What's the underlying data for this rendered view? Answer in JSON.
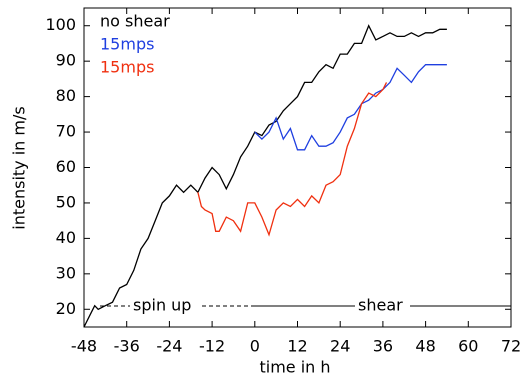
{
  "chart_data": {
    "type": "line",
    "xlabel": "time in h",
    "ylabel": "intensity in m/s",
    "xlim": [
      -48,
      72
    ],
    "xticks": [
      -48,
      -36,
      -24,
      -12,
      0,
      12,
      24,
      36,
      48,
      60,
      72
    ],
    "ylim": [
      15,
      105
    ],
    "yticks": [
      20,
      30,
      40,
      50,
      60,
      70,
      80,
      90,
      100
    ],
    "legend": "upper left",
    "annotations": [
      "spin up",
      "shear"
    ],
    "series": [
      {
        "name": "no shear",
        "color": "#000000",
        "x": [
          -48,
          -46,
          -45,
          -44,
          -42,
          -40,
          -38,
          -36,
          -34,
          -32,
          -30,
          -28,
          -26,
          -24,
          -22,
          -20,
          -18,
          -16,
          -14,
          -12,
          -10,
          -8,
          -6,
          -4,
          -2,
          0,
          2,
          4,
          6,
          8,
          10,
          12,
          14,
          16,
          18,
          20,
          22,
          24,
          26,
          28,
          30,
          32,
          34,
          36,
          38,
          40,
          42,
          44,
          46,
          48,
          50,
          52,
          54
        ],
        "values": [
          15,
          19,
          21,
          20,
          21,
          22,
          26,
          27,
          31,
          37,
          40,
          45,
          50,
          52,
          55,
          53,
          55,
          53,
          57,
          60,
          58,
          54,
          58,
          63,
          66,
          70,
          69,
          72,
          73,
          76,
          78,
          80,
          84,
          84,
          87,
          89,
          88,
          92,
          92,
          95,
          95,
          100,
          96,
          97,
          98,
          97,
          97,
          98,
          97,
          98,
          98,
          99,
          99
        ]
      },
      {
        "name": "15mps",
        "color": "#1f3fe0",
        "x": [
          0,
          2,
          4,
          6,
          8,
          10,
          12,
          14,
          16,
          18,
          20,
          22,
          24,
          26,
          28,
          30,
          32,
          34,
          36,
          38,
          40,
          42,
          44,
          46,
          48,
          50,
          52,
          54
        ],
        "values": [
          70,
          68,
          70,
          74,
          68,
          71,
          65,
          65,
          69,
          66,
          66,
          67,
          70,
          74,
          75,
          78,
          79,
          81,
          82,
          84,
          88,
          86,
          84,
          87,
          89,
          89,
          89,
          89
        ]
      },
      {
        "name": "15mps",
        "color": "#f03010",
        "x": [
          -16,
          -15,
          -14,
          -12,
          -11,
          -10,
          -8,
          -6,
          -4,
          -2,
          0,
          2,
          4,
          6,
          8,
          10,
          12,
          14,
          16,
          18,
          20,
          22,
          24,
          26,
          28,
          30,
          32,
          34,
          36,
          37
        ],
        "values": [
          53,
          49,
          48,
          47,
          42,
          42,
          46,
          45,
          42,
          50,
          50,
          46,
          41,
          48,
          50,
          49,
          51,
          49,
          52,
          50,
          55,
          56,
          58,
          66,
          71,
          78,
          81,
          80,
          82,
          84
        ]
      }
    ]
  }
}
